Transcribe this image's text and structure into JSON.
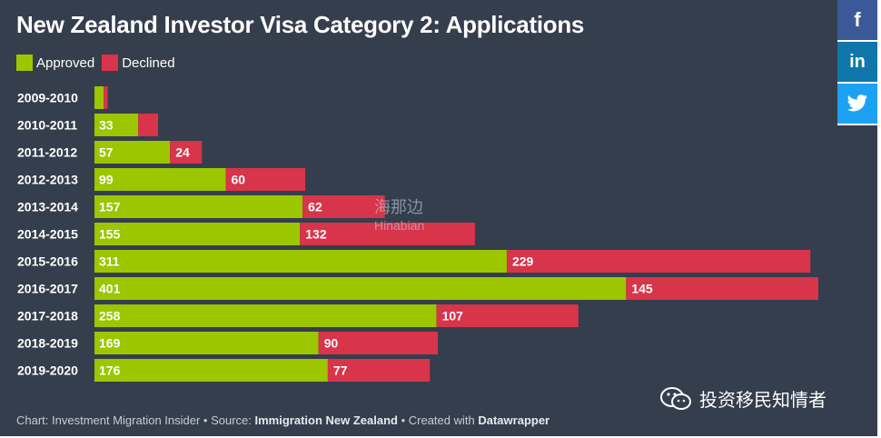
{
  "title": "New Zealand Investor Visa Category 2: Applications",
  "legend": [
    {
      "label": "Approved",
      "color": "#9cc600"
    },
    {
      "label": "Declined",
      "color": "#d8344a"
    }
  ],
  "footer": {
    "prefix": "Chart: Investment Migration Insider • Source: ",
    "source": "Immigration New Zealand",
    "mid": " • Created with ",
    "tool": "Datawrapper"
  },
  "social": {
    "facebook": "f",
    "linkedin": "in",
    "twitter": "twitter-icon"
  },
  "watermark": {
    "line1": "海那边",
    "line2": "Hinabian"
  },
  "wechat_label": "投资移民知情者",
  "chart_data": {
    "type": "bar",
    "orientation": "horizontal",
    "stacked": true,
    "categories": [
      "2009-2010",
      "2010-2011",
      "2011-2012",
      "2012-2013",
      "2013-2014",
      "2014-2015",
      "2015-2016",
      "2016-2017",
      "2017-2018",
      "2018-2019",
      "2019-2020"
    ],
    "series": [
      {
        "name": "Approved",
        "color": "#9cc600",
        "values": [
          7,
          33,
          57,
          99,
          157,
          155,
          311,
          401,
          258,
          169,
          176
        ],
        "labels": [
          "",
          "33",
          "57",
          "99",
          "157",
          "155",
          "311",
          "401",
          "258",
          "169",
          "176"
        ]
      },
      {
        "name": "Declined",
        "color": "#d8344a",
        "values": [
          3,
          15,
          24,
          60,
          62,
          132,
          229,
          145,
          107,
          90,
          77
        ],
        "labels": [
          "",
          "",
          "24",
          "60",
          "62",
          "132",
          "229",
          "145",
          "107",
          "90",
          "77"
        ]
      }
    ],
    "xlim": [
      0,
      546
    ],
    "grid": false,
    "legend_position": "top-left"
  }
}
